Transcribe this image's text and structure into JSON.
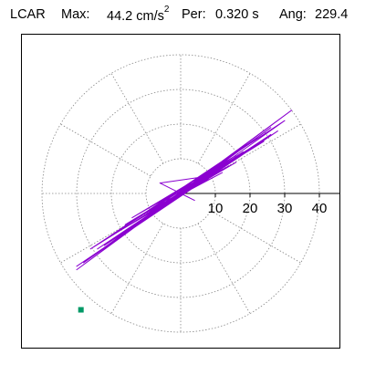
{
  "header": {
    "station": "LCAR",
    "max_label": "Max:",
    "max_value": "44.2 cm/s",
    "max_unit_exp": "2",
    "per_label": "Per:",
    "per_value": "0.320 s",
    "ang_label": "Ang:",
    "ang_value": "229.4"
  },
  "chart_data": {
    "type": "scatter",
    "title": "",
    "xlabel": "",
    "ylabel": "",
    "xlim": [
      -48,
      48
    ],
    "ylim": [
      -48,
      48
    ],
    "radial_ticks": [
      10,
      20,
      30,
      40
    ],
    "radial_tick_labels": [
      "10",
      "20",
      "30",
      "40"
    ],
    "radial_grid_rings": [
      10,
      20,
      30,
      40
    ],
    "radial_grid_spokes_deg": [
      0,
      30,
      60,
      90,
      120,
      150,
      180,
      210,
      240,
      270,
      300,
      330
    ],
    "grid": true,
    "series": [
      {
        "color": "#8A00D0",
        "x": [
          0.0,
          4,
          -6,
          8,
          -10,
          12,
          -14,
          16,
          -20,
          22,
          -24,
          26,
          -30,
          32,
          -28,
          30,
          -26,
          24,
          -18,
          16,
          -10,
          8,
          -4,
          2,
          6,
          -8,
          14,
          -16,
          20,
          -22,
          28,
          -30,
          26,
          -24,
          18,
          -14,
          10,
          -6,
          3,
          -2,
          5,
          -9,
          12,
          -3,
          2,
          -1,
          1,
          0
        ],
        "y": [
          0.0,
          -2,
          3,
          5,
          -6,
          8,
          -7,
          11,
          -12,
          16,
          -17,
          19,
          -22,
          24,
          -20,
          21,
          -16,
          15,
          -11,
          9,
          -6,
          4,
          -2,
          1,
          3,
          -5,
          8,
          -9,
          13,
          -15,
          18,
          -21,
          17,
          -16,
          12,
          -10,
          7,
          -4,
          2,
          -1,
          3,
          -5,
          6,
          -2,
          1,
          0,
          1,
          0
        ]
      }
    ],
    "marker": {
      "color": "#009966",
      "angle_deg": 229.4,
      "magnitude": 44.2
    }
  }
}
